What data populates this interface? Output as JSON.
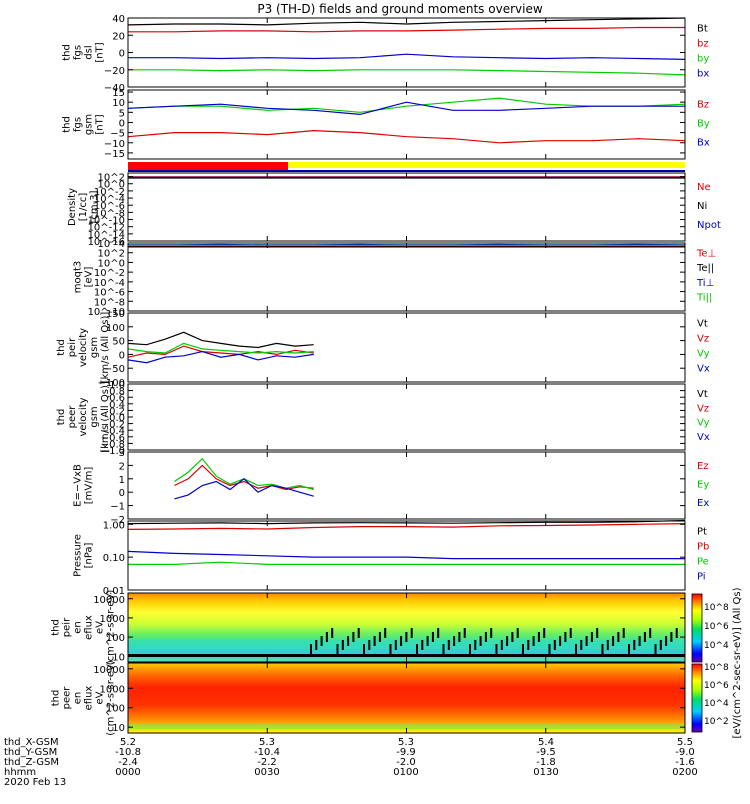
{
  "title": "P3 (TH-D) fields and ground moments overview",
  "footer": {
    "rows": [
      {
        "label": "thd_X-GSM",
        "values": [
          "5.2",
          "5.3",
          "5.3",
          "5.4",
          "5.5"
        ]
      },
      {
        "label": "thd_Y-GSM",
        "values": [
          "-10.8",
          "-10.4",
          "-9.9",
          "-9.5",
          "-9.0"
        ]
      },
      {
        "label": "thd_Z-GSM",
        "values": [
          "-2.4",
          "-2.2",
          "-2.0",
          "-1.8",
          "-1.6"
        ]
      },
      {
        "label": "hhmm",
        "values": [
          "0000",
          "0030",
          "0100",
          "0130",
          "0200"
        ]
      }
    ],
    "date": "2020 Feb 13"
  },
  "colorbar": {
    "label": "[eV/(cm^2-sec-sr-eV)] (All Qs)",
    "upper_ticks": [
      "10^8",
      "10^6",
      "10^4"
    ],
    "lower_ticks": [
      "10^8",
      "10^6",
      "10^4",
      "10^2"
    ]
  },
  "colors": {
    "black": "#000000",
    "red": "#dd0000",
    "green": "#00cc00",
    "blue": "#0000cc",
    "yellow": "#ffff00"
  },
  "chart_data": [
    {
      "id": "fgs_dsl",
      "type": "line",
      "ylabel": [
        "thd",
        "fgs",
        "dsl",
        "[nT]"
      ],
      "ylim": [
        -40,
        40
      ],
      "ticks": [
        {
          "v": 40,
          "t": "40"
        },
        {
          "v": 20,
          "t": "20"
        },
        {
          "v": 0,
          "t": "0"
        },
        {
          "v": -20,
          "t": "−20"
        },
        {
          "v": -40,
          "t": "−40"
        }
      ],
      "x": [
        0,
        10,
        20,
        30,
        40,
        50,
        60,
        70,
        80,
        90,
        100,
        110,
        120
      ],
      "series": [
        {
          "name": "Bt",
          "color": "black",
          "values": [
            32,
            33,
            33,
            32,
            34,
            35,
            33,
            35,
            36,
            37,
            38,
            39,
            40
          ]
        },
        {
          "name": "bz",
          "color": "red",
          "values": [
            24,
            24,
            25,
            25,
            24,
            25,
            25,
            26,
            27,
            28,
            28,
            29,
            29
          ]
        },
        {
          "name": "by",
          "color": "green",
          "values": [
            -20,
            -20,
            -21,
            -20,
            -21,
            -20,
            -20,
            -20,
            -21,
            -22,
            -23,
            -24,
            -26
          ]
        },
        {
          "name": "bx",
          "color": "blue",
          "values": [
            -6,
            -6,
            -7,
            -6,
            -7,
            -6,
            -2,
            -5,
            -6,
            -7,
            -6,
            -7,
            -8
          ]
        }
      ]
    },
    {
      "id": "fgs_gsm",
      "type": "line",
      "ylabel": [
        "thd",
        "fgs",
        "gsm",
        "[nT]"
      ],
      "ylim": [
        -18,
        16
      ],
      "ticks": [
        {
          "v": 15,
          "t": "15"
        },
        {
          "v": 10,
          "t": "10"
        },
        {
          "v": 5,
          "t": "5"
        },
        {
          "v": 0,
          "t": "0"
        },
        {
          "v": -5,
          "t": "−5"
        },
        {
          "v": -10,
          "t": "−10"
        },
        {
          "v": -15,
          "t": "−15"
        }
      ],
      "x": [
        0,
        10,
        20,
        30,
        40,
        50,
        60,
        70,
        80,
        90,
        100,
        110,
        120
      ],
      "series": [
        {
          "name": "Bz",
          "color": "red",
          "values": [
            -7,
            -5,
            -5,
            -6,
            -4,
            -5,
            -7,
            -8,
            -10,
            -9,
            -9,
            -8,
            -9
          ]
        },
        {
          "name": "By",
          "color": "green",
          "values": [
            7,
            8,
            8,
            6,
            7,
            5,
            8,
            10,
            12,
            9,
            8,
            8,
            9
          ]
        },
        {
          "name": "Bx",
          "color": "blue",
          "values": [
            7,
            8,
            9,
            7,
            6,
            4,
            10,
            6,
            6,
            7,
            8,
            8,
            8
          ]
        }
      ]
    },
    {
      "id": "density",
      "type": "line",
      "ylabel": [
        "Density",
        "[1/cc]",
        "[cm-3]"
      ],
      "log": true,
      "ylim": [
        -16,
        3
      ],
      "ticks": [
        {
          "v": 2,
          "t": "10^2"
        },
        {
          "v": 0,
          "t": "10^0"
        },
        {
          "v": -2,
          "t": "10^-2"
        },
        {
          "v": -4,
          "t": "10^-4"
        },
        {
          "v": -6,
          "t": "10^-6"
        },
        {
          "v": -8,
          "t": "10^-8"
        },
        {
          "v": -10,
          "t": "10^-10"
        },
        {
          "v": -12,
          "t": "10^-12"
        },
        {
          "v": -14,
          "t": "10^-14"
        },
        {
          "v": -16,
          "t": "10^-16"
        }
      ],
      "x": [
        0,
        10,
        20,
        30,
        40,
        50,
        60,
        70,
        80,
        90,
        100,
        110,
        120
      ],
      "series": [
        {
          "name": "Ne",
          "color": "red",
          "values": [
            1.9,
            1.9,
            1.9,
            1.9,
            1.9,
            1.9,
            1.9,
            1.9,
            1.9,
            1.9,
            1.9,
            1.9,
            1.9
          ]
        },
        {
          "name": "Ni",
          "color": "black",
          "values": [
            1.6,
            1.6,
            1.6,
            1.6,
            1.6,
            1.6,
            1.6,
            1.6,
            1.6,
            1.6,
            1.6,
            1.6,
            1.6
          ]
        },
        {
          "name": "Npot",
          "color": "blue",
          "values": [
            1.8,
            1.8,
            1.8,
            1.8,
            1.8,
            1.8,
            1.8,
            1.8,
            1.8,
            1.8,
            1.8,
            1.8,
            1.8
          ]
        }
      ]
    },
    {
      "id": "temperature",
      "type": "line",
      "ylabel": [
        "moqt3",
        "[eV]"
      ],
      "log": true,
      "ylim": [
        -10,
        4
      ],
      "ticks": [
        {
          "v": 4,
          "t": "10^4"
        },
        {
          "v": 2,
          "t": "10^2"
        },
        {
          "v": 0,
          "t": "10^0"
        },
        {
          "v": -2,
          "t": "10^-2"
        },
        {
          "v": -4,
          "t": "10^-4"
        },
        {
          "v": -6,
          "t": "10^-6"
        },
        {
          "v": -8,
          "t": "10^-8"
        },
        {
          "v": -10,
          "t": "10^-10"
        }
      ],
      "x": [
        0,
        10,
        20,
        30,
        40,
        50,
        60,
        70,
        80,
        90,
        100,
        110,
        120
      ],
      "series": [
        {
          "name": "Te⊥",
          "color": "red",
          "values": [
            3.3,
            3.3,
            3.3,
            3.3,
            3.3,
            3.3,
            3.3,
            3.3,
            3.3,
            3.3,
            3.3,
            3.3,
            3.3
          ]
        },
        {
          "name": "Te||",
          "color": "black",
          "values": [
            3.2,
            3.2,
            3.2,
            3.2,
            3.2,
            3.2,
            3.2,
            3.2,
            3.2,
            3.2,
            3.2,
            3.2,
            3.2
          ]
        },
        {
          "name": "Ti⊥",
          "color": "blue",
          "values": [
            3.6,
            3.6,
            3.7,
            3.6,
            3.6,
            3.7,
            3.6,
            3.6,
            3.7,
            3.6,
            3.6,
            3.7,
            3.6
          ]
        },
        {
          "name": "Ti||",
          "color": "green",
          "values": [
            3.5,
            3.5,
            3.5,
            3.5,
            3.5,
            3.5,
            3.5,
            3.5,
            3.5,
            3.5,
            3.5,
            3.5,
            3.5
          ]
        }
      ]
    },
    {
      "id": "peir_velocity",
      "type": "line",
      "ylabel": [
        "thd",
        "peir",
        "velocity",
        "gsm",
        "[km/s (All Qs)]"
      ],
      "ylim": [
        -100,
        150
      ],
      "ticks": [
        {
          "v": 150,
          "t": "150"
        },
        {
          "v": 100,
          "t": "100"
        },
        {
          "v": 50,
          "t": "50"
        },
        {
          "v": 0,
          "t": "0"
        },
        {
          "v": -50,
          "t": "−50"
        },
        {
          "v": -100,
          "t": "−100"
        }
      ],
      "x": [
        0,
        4,
        8,
        12,
        16,
        20,
        24,
        28,
        32,
        36,
        40
      ],
      "series": [
        {
          "name": "Vt",
          "color": "black",
          "values": [
            40,
            35,
            55,
            80,
            50,
            40,
            30,
            25,
            40,
            30,
            35
          ]
        },
        {
          "name": "Vz",
          "color": "red",
          "values": [
            -10,
            5,
            0,
            30,
            10,
            5,
            0,
            10,
            0,
            15,
            5
          ]
        },
        {
          "name": "Vy",
          "color": "green",
          "values": [
            20,
            10,
            5,
            40,
            20,
            15,
            10,
            5,
            10,
            5,
            10
          ]
        },
        {
          "name": "Vx",
          "color": "blue",
          "values": [
            -20,
            -30,
            -10,
            -5,
            10,
            -10,
            0,
            -20,
            -5,
            -10,
            0
          ]
        }
      ]
    },
    {
      "id": "peer_velocity",
      "type": "line",
      "ylabel": [
        "thd",
        "peer",
        "velocity",
        "gsm",
        "[km/s (All Qs)]"
      ],
      "ylim": [
        -1,
        1
      ],
      "ticks": [
        {
          "v": 1,
          "t": "1.0"
        },
        {
          "v": 0.8,
          "t": "0.8"
        },
        {
          "v": 0.6,
          "t": "0.6"
        },
        {
          "v": 0.4,
          "t": "0.4"
        },
        {
          "v": 0.2,
          "t": "0.2"
        },
        {
          "v": 0,
          "t": "0.0"
        },
        {
          "v": -0.2,
          "t": "−0.2"
        },
        {
          "v": -0.4,
          "t": "−0.4"
        },
        {
          "v": -0.6,
          "t": "−0.6"
        },
        {
          "v": -0.8,
          "t": "−0.8"
        },
        {
          "v": -1,
          "t": "−1.0"
        }
      ],
      "x": [],
      "series": [
        {
          "name": "Vt",
          "color": "black",
          "values": []
        },
        {
          "name": "Vz",
          "color": "red",
          "values": []
        },
        {
          "name": "Vy",
          "color": "green",
          "values": []
        },
        {
          "name": "Vx",
          "color": "blue",
          "values": []
        }
      ]
    },
    {
      "id": "efield",
      "type": "line",
      "ylabel": [
        "E=−VxB",
        "[mV/m]"
      ],
      "ylim": [
        -2,
        3
      ],
      "ticks": [
        {
          "v": 3,
          "t": "3"
        },
        {
          "v": 2,
          "t": "2"
        },
        {
          "v": 1,
          "t": "1"
        },
        {
          "v": 0,
          "t": "0"
        },
        {
          "v": -1,
          "t": "−1"
        },
        {
          "v": -2,
          "t": "−2"
        }
      ],
      "x": [
        10,
        13,
        16,
        19,
        22,
        25,
        28,
        31,
        34,
        37,
        40
      ],
      "series": [
        {
          "name": "Ez",
          "color": "red",
          "values": [
            0.5,
            1.0,
            2.0,
            1.0,
            0.5,
            0.8,
            0.3,
            0.5,
            0.2,
            0.4,
            0.3
          ]
        },
        {
          "name": "Ey",
          "color": "green",
          "values": [
            0.8,
            1.5,
            2.5,
            1.2,
            0.6,
            1.0,
            0.5,
            0.6,
            0.3,
            0.5,
            0.2
          ]
        },
        {
          "name": "Ex",
          "color": "blue",
          "values": [
            -0.5,
            -0.2,
            0.5,
            0.8,
            0.2,
            1.0,
            0.0,
            0.5,
            0.3,
            0.0,
            -0.3
          ]
        }
      ]
    },
    {
      "id": "pressure",
      "type": "line",
      "ylabel": [
        "Pressure",
        "[nPa]"
      ],
      "log": true,
      "ylim": [
        -2,
        0.1
      ],
      "ticks": [
        {
          "v": 0,
          "t": "1.00"
        },
        {
          "v": -1,
          "t": "0.10"
        },
        {
          "v": -2,
          "t": "0.01"
        }
      ],
      "x": [
        0,
        10,
        20,
        30,
        40,
        50,
        60,
        70,
        80,
        90,
        100,
        110,
        120
      ],
      "series": [
        {
          "name": "Pt",
          "color": "black",
          "values": [
            1.05,
            1.08,
            1.1,
            1.05,
            1.1,
            1.12,
            1.1,
            1.08,
            1.12,
            1.15,
            1.15,
            1.2,
            1.3
          ]
        },
        {
          "name": "Pb",
          "color": "red",
          "values": [
            0.7,
            0.72,
            0.75,
            0.72,
            0.8,
            0.85,
            0.85,
            0.82,
            0.9,
            0.92,
            0.95,
            1.0,
            1.05
          ]
        },
        {
          "name": "Pe",
          "color": "green",
          "values": [
            0.06,
            0.06,
            0.07,
            0.06,
            0.06,
            0.06,
            0.06,
            0.06,
            0.06,
            0.06,
            0.06,
            0.06,
            0.06
          ]
        },
        {
          "name": "Pi",
          "color": "blue",
          "values": [
            0.15,
            0.13,
            0.12,
            0.11,
            0.1,
            0.1,
            0.1,
            0.09,
            0.09,
            0.09,
            0.09,
            0.09,
            0.09
          ]
        }
      ]
    },
    {
      "id": "peir_spectrogram",
      "type": "heatmap",
      "ylabel": [
        "thd",
        "peir",
        "en",
        "eflux",
        "eV",
        "(cm^2-s-sr-eV)"
      ],
      "log": true,
      "ylim": [
        0.7,
        4.3
      ],
      "ticks": [
        {
          "v": 4,
          "t": "10000"
        },
        {
          "v": 3,
          "t": "1000"
        },
        {
          "v": 2,
          "t": "100"
        },
        {
          "v": 1,
          "t": "10"
        }
      ]
    },
    {
      "id": "peer_spectrogram",
      "type": "heatmap",
      "ylabel": [
        "thd",
        "peer",
        "en",
        "eflux",
        "eV",
        "(cm^2-s-sr-eV)"
      ],
      "log": true,
      "ylim": [
        0.7,
        4.3
      ],
      "ticks": [
        {
          "v": 4,
          "t": "10000"
        },
        {
          "v": 3,
          "t": "1000"
        },
        {
          "v": 2,
          "t": "100"
        },
        {
          "v": 1,
          "t": "10"
        }
      ]
    }
  ]
}
